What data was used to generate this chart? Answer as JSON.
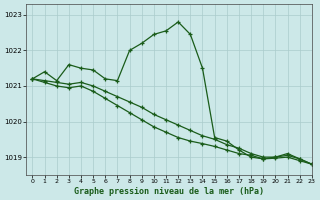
{
  "title": "Graphe pression niveau de la mer (hPa)",
  "background_color": "#cce8e8",
  "grid_color": "#aacccc",
  "line_color": "#1a5c1a",
  "xlim": [
    -0.5,
    23
  ],
  "ylim": [
    1018.5,
    1023.3
  ],
  "yticks": [
    1019,
    1020,
    1021,
    1022,
    1023
  ],
  "xticks": [
    0,
    1,
    2,
    3,
    4,
    5,
    6,
    7,
    8,
    9,
    10,
    11,
    12,
    13,
    14,
    15,
    16,
    17,
    18,
    19,
    20,
    21,
    22,
    23
  ],
  "series": [
    [
      1021.2,
      1021.4,
      1021.15,
      1021.6,
      1021.5,
      1021.45,
      1021.2,
      1021.15,
      1022.0,
      1022.2,
      1022.45,
      1022.55,
      1022.8,
      1022.45,
      1021.5,
      1019.55,
      1019.45,
      1019.2,
      1019.0,
      1018.95,
      1019.0,
      1019.1,
      1018.95,
      1018.8
    ],
    [
      1021.2,
      1021.15,
      1021.1,
      1021.05,
      1021.1,
      1021.0,
      1020.85,
      1020.7,
      1020.55,
      1020.4,
      1020.2,
      1020.05,
      1019.9,
      1019.75,
      1019.6,
      1019.5,
      1019.35,
      1019.25,
      1019.1,
      1019.0,
      1019.0,
      1019.05,
      1018.95,
      1018.8
    ],
    [
      1021.2,
      1021.1,
      1021.0,
      1020.95,
      1021.0,
      1020.85,
      1020.65,
      1020.45,
      1020.25,
      1020.05,
      1019.85,
      1019.7,
      1019.55,
      1019.45,
      1019.38,
      1019.3,
      1019.2,
      1019.1,
      1019.05,
      1018.95,
      1018.97,
      1019.0,
      1018.9,
      1018.8
    ]
  ]
}
